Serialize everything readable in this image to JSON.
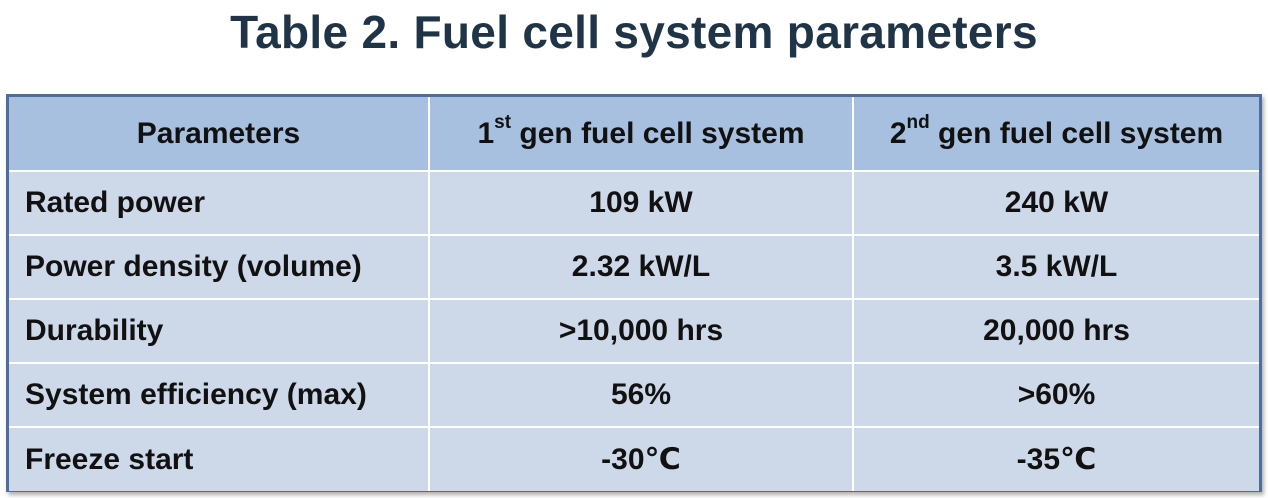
{
  "title": "Table 2. Fuel cell system parameters",
  "table": {
    "headers": {
      "col1": "Parameters",
      "col2_num": "1",
      "col2_sup": "st",
      "col2_rest": " gen fuel cell system",
      "col3_num": "2",
      "col3_sup": "nd",
      "col3_rest": " gen fuel cell system"
    },
    "rows": [
      {
        "parameter": "Rated power",
        "gen1": "109 kW",
        "gen2": "240 kW"
      },
      {
        "parameter": "Power density (volume)",
        "gen1": "2.32 kW/L",
        "gen2": "3.5 kW/L"
      },
      {
        "parameter": "Durability",
        "gen1": ">10,000 hrs",
        "gen2": "20,000 hrs"
      },
      {
        "parameter": "System efficiency (max)",
        "gen1": "56%",
        "gen2": ">60%"
      },
      {
        "parameter": "Freeze start",
        "gen1": "-30℃",
        "gen2": "-35℃"
      }
    ]
  },
  "colors": {
    "title": "#1f3547",
    "header_fill": "#a7c0df",
    "body_fill": "#cdd9e9",
    "frame": "#4d6e9c"
  }
}
